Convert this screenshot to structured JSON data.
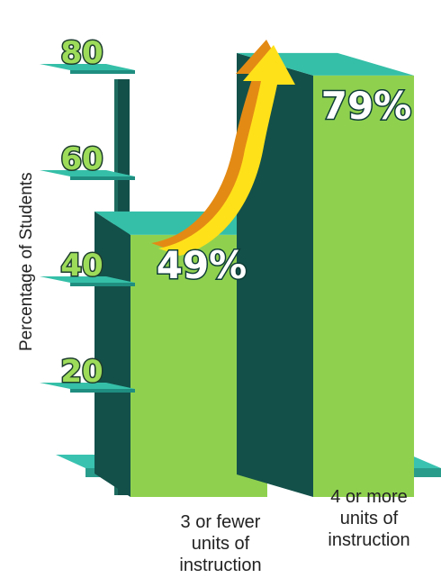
{
  "chart_data": {
    "type": "bar",
    "ylabel": "Percentage of Students",
    "yticks": [
      20,
      40,
      60,
      80
    ],
    "ylim": [
      0,
      90
    ],
    "categories": [
      "3 or fewer\nunits of\ninstruction",
      "4 or more\nunits of\ninstruction"
    ],
    "values": [
      49,
      79
    ],
    "data_labels": [
      "49%",
      "79%"
    ],
    "annotation": "upward arrow from first bar to second bar"
  },
  "colors": {
    "bar_front": "#8fd14f",
    "bar_side": "#13504a",
    "bar_top": "#35bfa8",
    "floor": "#39c2b0",
    "tick_text": "#9ddc59",
    "tick_outline": "#1d3d2e",
    "arrow_light": "#ffe11a",
    "arrow_dark": "#e38a14",
    "label_fill": "#ffffff",
    "label_outline": "#0d3d36"
  }
}
